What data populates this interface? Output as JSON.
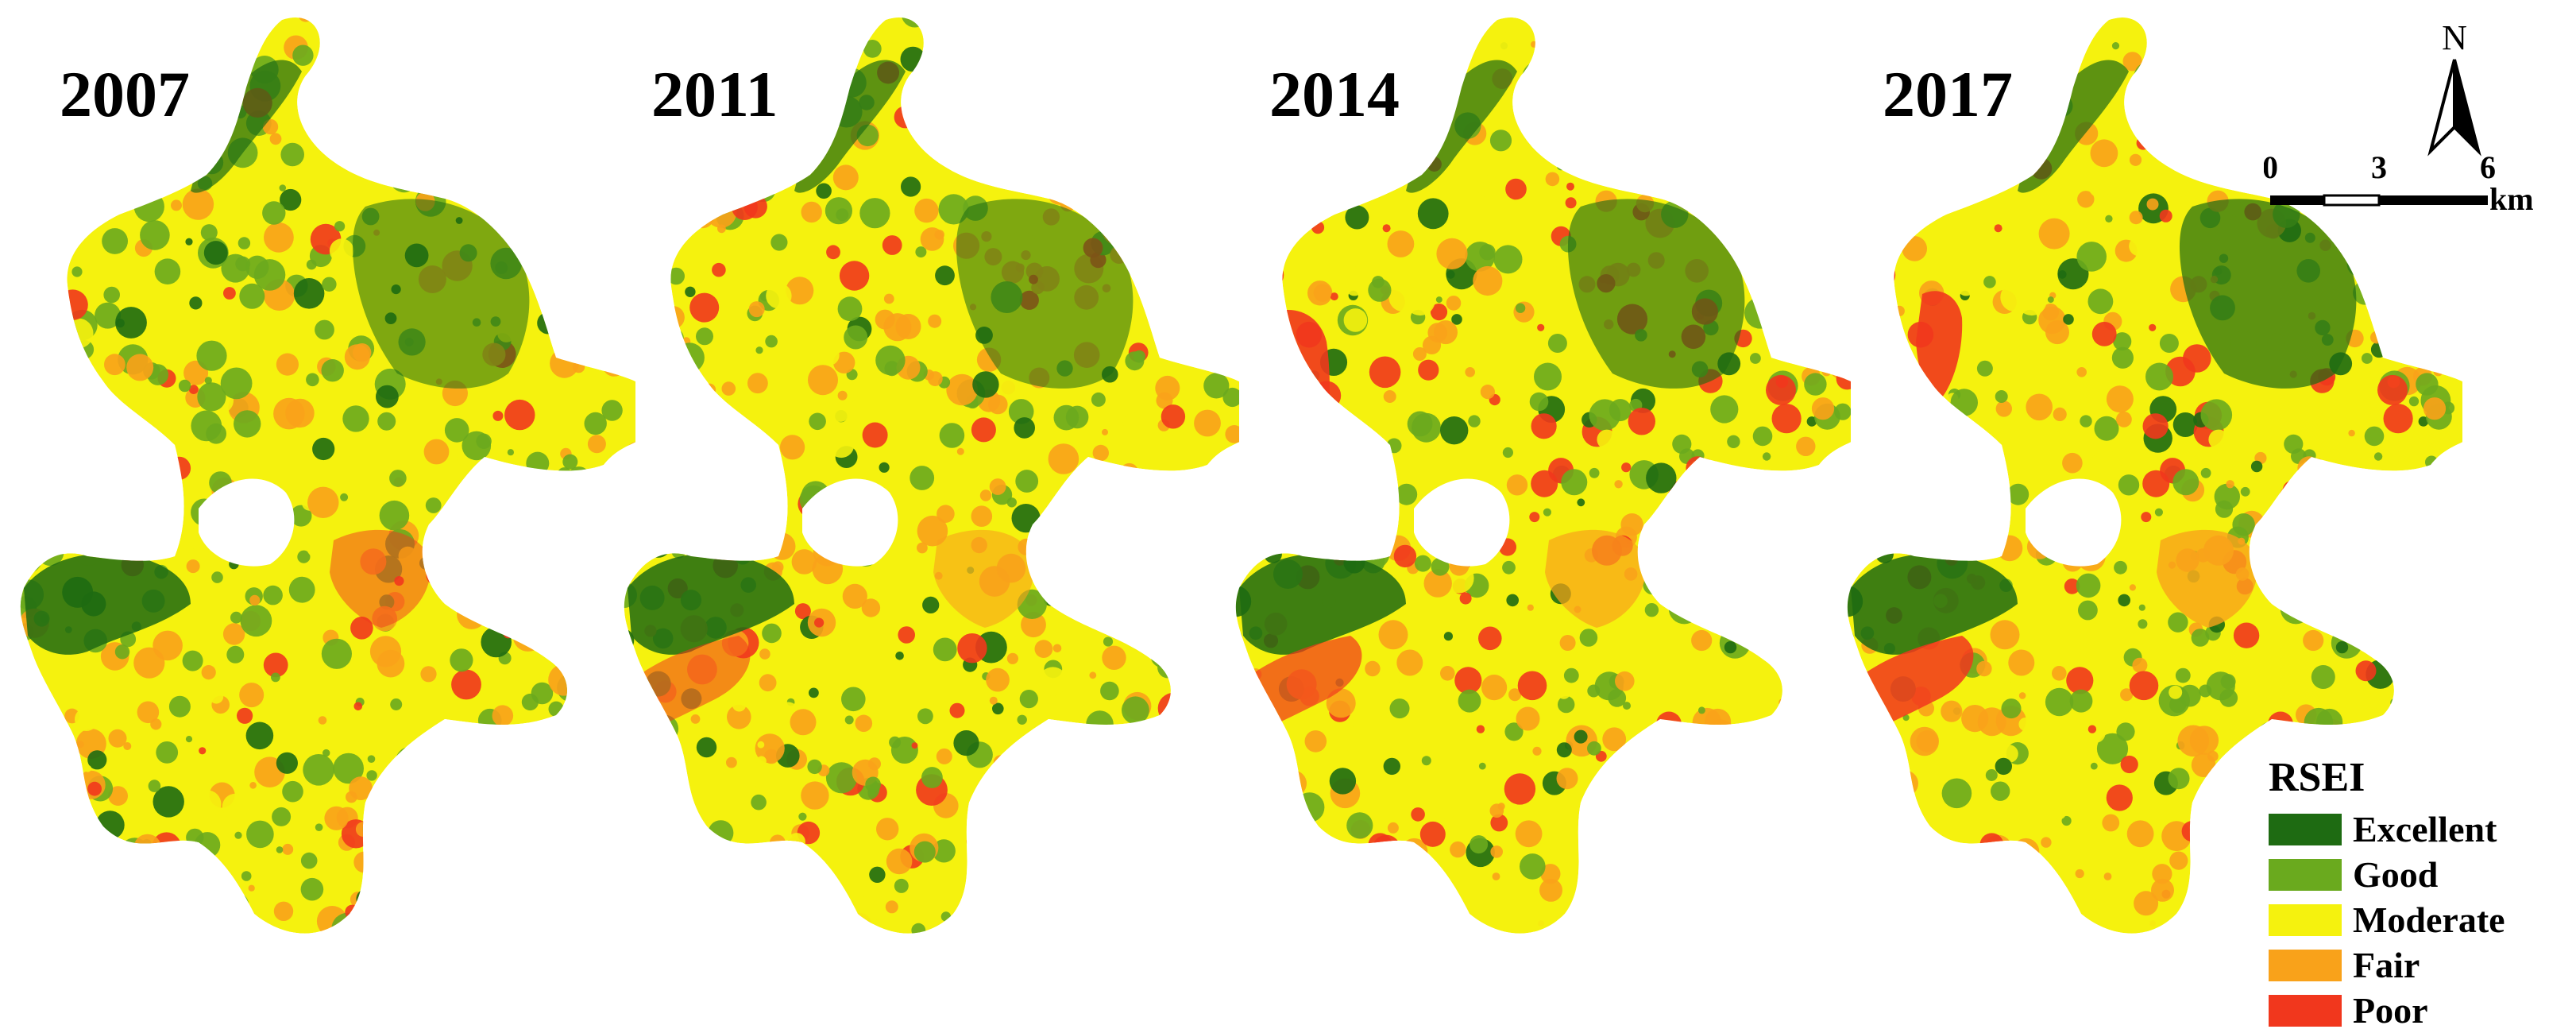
{
  "panels": [
    {
      "year": "2007"
    },
    {
      "year": "2011"
    },
    {
      "year": "2014"
    },
    {
      "year": "2017"
    }
  ],
  "legend": {
    "title": "RSEI",
    "items": [
      {
        "label": "Excellent",
        "color": "#1e6b12"
      },
      {
        "label": "Good",
        "color": "#6aaa1e"
      },
      {
        "label": "Moderate",
        "color": "#f5f20e"
      },
      {
        "label": "Fair",
        "color": "#f9a21a"
      },
      {
        "label": "Poor",
        "color": "#f1371d"
      }
    ]
  },
  "north_arrow": {
    "label": "N"
  },
  "scale_bar": {
    "ticks": [
      "0",
      "3",
      "6"
    ],
    "unit": "km"
  }
}
